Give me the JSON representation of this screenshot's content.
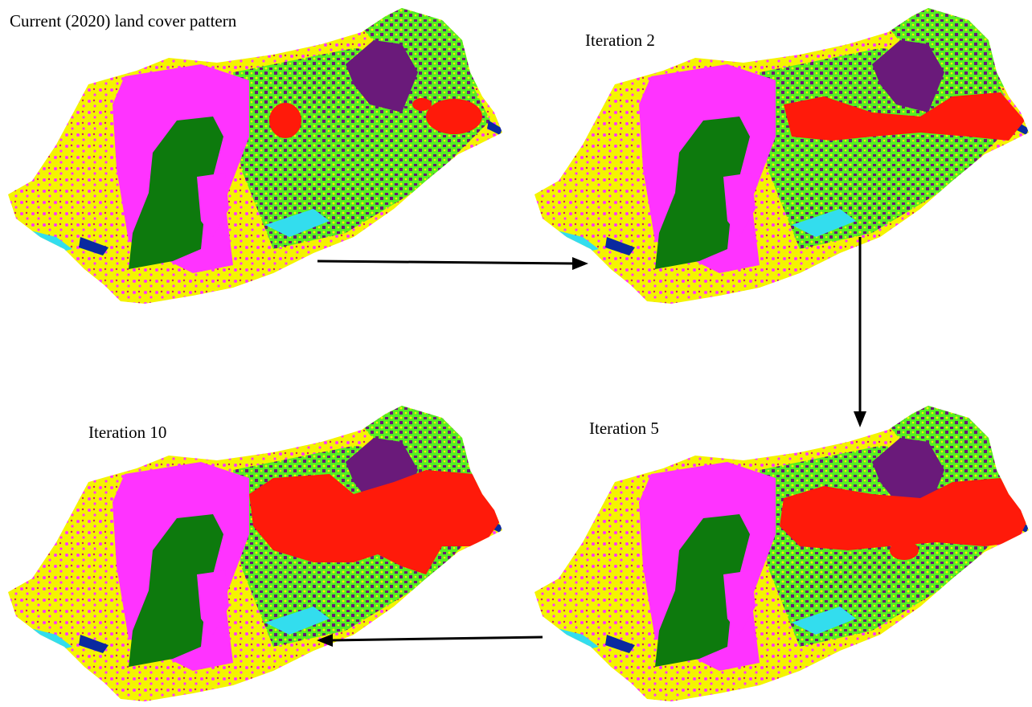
{
  "panels": [
    {
      "label": "Current (2020) land cover pattern"
    },
    {
      "label": "Iteration 2"
    },
    {
      "label": "Iteration 5"
    },
    {
      "label": "Iteration 10"
    }
  ]
}
